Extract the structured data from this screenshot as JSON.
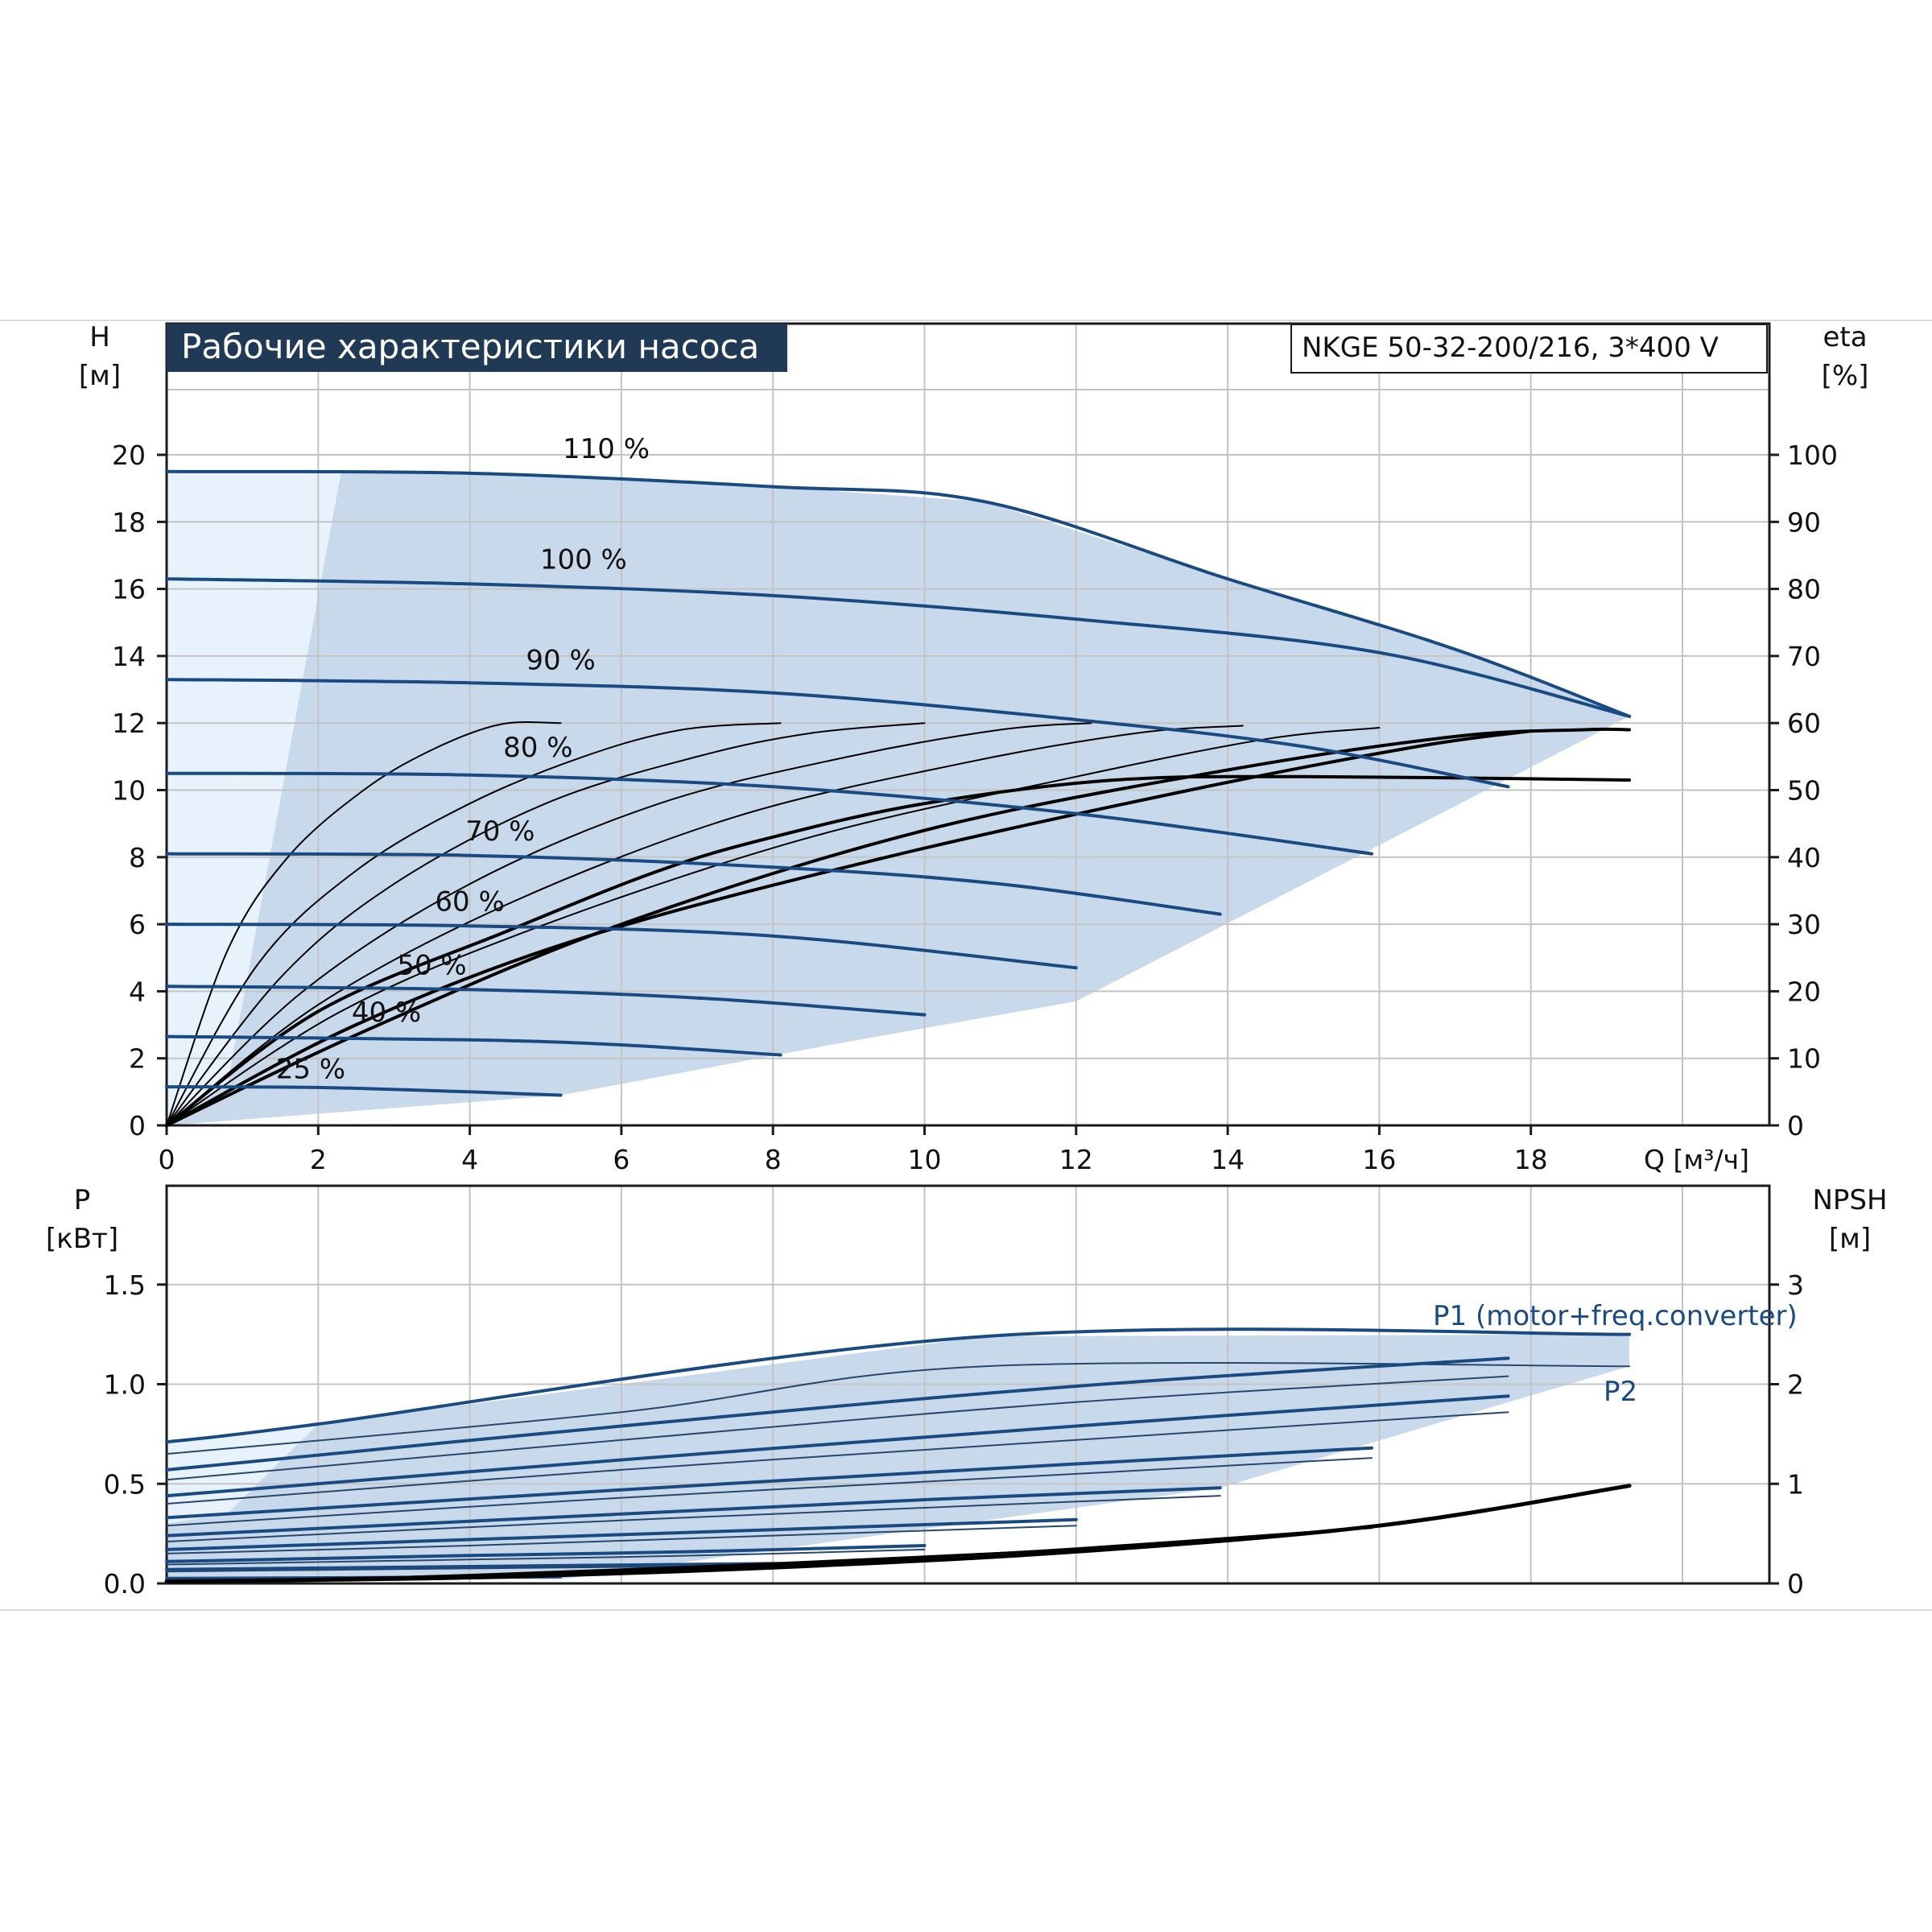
{
  "title": "Рабочие характеристики насоса",
  "model": "NKGE 50-32-200/216, 3*400 V",
  "colors": {
    "title_bg": "#203a56",
    "curve": "#1a4a82",
    "range_fill": "#c9d9ec",
    "range_fill_light": "#e8f2fd",
    "efficiency": "#000000",
    "grid": "#c4c4c4"
  },
  "chart_data": [
    {
      "id": "head",
      "type": "line",
      "title": "Рабочие характеристики насоса",
      "xlabel": "Q [м³/ч]",
      "x_ticks": [
        "0",
        "2",
        "4",
        "6",
        "8",
        "10",
        "12",
        "14",
        "16",
        "18"
      ],
      "xlim": [
        0,
        21.2
      ],
      "y_left_label": [
        "H",
        "[м]"
      ],
      "y_left_ticks": [
        "0",
        "2",
        "4",
        "6",
        "8",
        "10",
        "12",
        "14",
        "16",
        "18",
        "20"
      ],
      "ylim": [
        0,
        24
      ],
      "y_right_label": [
        "eta",
        "[%]"
      ],
      "y_right_ticks": [
        "0",
        "10",
        "20",
        "30",
        "40",
        "50",
        "60",
        "70",
        "80",
        "90",
        "100"
      ],
      "y_right_lim": [
        0,
        120
      ],
      "grid": true,
      "speed_curves": [
        {
          "name": "110 %",
          "points": [
            [
              0,
              19.5
            ],
            [
              4,
              19.45
            ],
            [
              8,
              19.05
            ],
            [
              10.8,
              18.6
            ],
            [
              14,
              16.3
            ],
            [
              17,
              14.2
            ],
            [
              19.3,
              12.2
            ]
          ]
        },
        {
          "name": "100 %",
          "points": [
            [
              0,
              16.3
            ],
            [
              4,
              16.15
            ],
            [
              8,
              15.8
            ],
            [
              12,
              15.1
            ],
            [
              16,
              14.1
            ],
            [
              19.3,
              12.2
            ]
          ]
        },
        {
          "name": "90 %",
          "points": [
            [
              0,
              13.3
            ],
            [
              4,
              13.2
            ],
            [
              8,
              12.9
            ],
            [
              12,
              12.1
            ],
            [
              15,
              11.3
            ],
            [
              17.7,
              10.1
            ]
          ]
        },
        {
          "name": "80 %",
          "points": [
            [
              0,
              10.5
            ],
            [
              4,
              10.45
            ],
            [
              8,
              10.1
            ],
            [
              12,
              9.3
            ],
            [
              15.9,
              8.1
            ]
          ]
        },
        {
          "name": "70 %",
          "points": [
            [
              0,
              8.1
            ],
            [
              4,
              8.05
            ],
            [
              8,
              7.7
            ],
            [
              11,
              7.2
            ],
            [
              13.9,
              6.3
            ]
          ]
        },
        {
          "name": "60 %",
          "points": [
            [
              0,
              6.0
            ],
            [
              4,
              5.95
            ],
            [
              8,
              5.65
            ],
            [
              12,
              4.7
            ]
          ]
        },
        {
          "name": "50 %",
          "points": [
            [
              0,
              4.15
            ],
            [
              4,
              4.05
            ],
            [
              7,
              3.8
            ],
            [
              10,
              3.3
            ]
          ]
        },
        {
          "name": "40 %",
          "points": [
            [
              0,
              2.65
            ],
            [
              4,
              2.55
            ],
            [
              6,
              2.4
            ],
            [
              8.1,
              2.1
            ]
          ]
        },
        {
          "name": "25 %",
          "points": [
            [
              0,
              1.15
            ],
            [
              2,
              1.13
            ],
            [
              4,
              1.0
            ],
            [
              5.2,
              0.9
            ]
          ]
        }
      ],
      "efficiency_curves": [
        {
          "points": [
            [
              0,
              0
            ],
            [
              0.8,
              26
            ],
            [
              1.6,
              40
            ],
            [
              2.6,
              50
            ],
            [
              3.5,
              56
            ],
            [
              4.4,
              59.8
            ],
            [
              5.2,
              60
            ]
          ]
        },
        {
          "points": [
            [
              0,
              0
            ],
            [
              1.2,
              24
            ],
            [
              2.5,
              38
            ],
            [
              4,
              48
            ],
            [
              5.5,
              55
            ],
            [
              6.8,
              59
            ],
            [
              8.1,
              60
            ]
          ]
        },
        {
          "points": [
            [
              0,
              0
            ],
            [
              1.5,
              22
            ],
            [
              3,
              36
            ],
            [
              5,
              48
            ],
            [
              7,
              55
            ],
            [
              8.5,
              58.5
            ],
            [
              10,
              60
            ]
          ]
        },
        {
          "points": [
            [
              0,
              0
            ],
            [
              1.8,
              20
            ],
            [
              4,
              36
            ],
            [
              6.5,
              48
            ],
            [
              9,
              55
            ],
            [
              11,
              59
            ],
            [
              12.2,
              60
            ]
          ]
        },
        {
          "points": [
            [
              0,
              0
            ],
            [
              2,
              18
            ],
            [
              4.5,
              33
            ],
            [
              7.5,
              46
            ],
            [
              10.5,
              54
            ],
            [
              12.8,
              58.5
            ],
            [
              14.2,
              59.6
            ]
          ]
        },
        {
          "points": [
            [
              0,
              0
            ],
            [
              2.3,
              17
            ],
            [
              5,
              30
            ],
            [
              8.5,
              43
            ],
            [
              12,
              52
            ],
            [
              14.5,
              57.6
            ],
            [
              16,
              59.3
            ]
          ]
        },
        {
          "points": [
            [
              0,
              0
            ],
            [
              2.5,
              15
            ],
            [
              5.5,
              28
            ],
            [
              9.5,
              40
            ],
            [
              13.5,
              50
            ],
            [
              16.5,
              56.5
            ],
            [
              18,
              58.8
            ]
          ]
        },
        {
          "points": [
            [
              0,
              0
            ],
            [
              2,
              17
            ],
            [
              4.5,
              29
            ],
            [
              6.5,
              38
            ],
            [
              8,
              43
            ],
            [
              10,
              48
            ],
            [
              12.5,
              51.5
            ],
            [
              15,
              52
            ],
            [
              19.3,
              51.5
            ]
          ]
        },
        {
          "points": [
            [
              0,
              0
            ],
            [
              2.6,
              14
            ],
            [
              6,
              30
            ],
            [
              10,
              44
            ],
            [
              14,
              53
            ],
            [
              17,
              58
            ],
            [
              18.7,
              59
            ],
            [
              19.3,
              59
            ]
          ]
        }
      ],
      "curve_labels": [
        "110 %",
        "100 %",
        "90 %",
        "80 %",
        "70 %",
        "60 %",
        "50 %",
        "40 %",
        "25 %"
      ]
    },
    {
      "id": "power",
      "type": "line",
      "y_left_label": [
        "P",
        "[кВт]"
      ],
      "y_left_ticks": [
        "0.0",
        "0.5",
        "1.0",
        "1.5"
      ],
      "ylim": [
        0,
        2.0
      ],
      "y_right_label": [
        "NPSH",
        "[м]"
      ],
      "y_right_ticks": [
        "0",
        "1",
        "2",
        "3"
      ],
      "y_right_lim": [
        0,
        4
      ],
      "xlim": [
        0,
        21.2
      ],
      "grid": true,
      "series_labels": [
        "P1 (motor+freq.converter)",
        "P2"
      ],
      "p1_curves": [
        {
          "points": [
            [
              0,
              0.71
            ],
            [
              2,
              0.8
            ],
            [
              10.8,
              1.24
            ],
            [
              19.3,
              1.25
            ]
          ]
        },
        {
          "points": [
            [
              0,
              0.57
            ],
            [
              6,
              0.79
            ],
            [
              12,
              0.99
            ],
            [
              17.7,
              1.13
            ]
          ]
        },
        {
          "points": [
            [
              0,
              0.44
            ],
            [
              6,
              0.62
            ],
            [
              12,
              0.79
            ],
            [
              17.7,
              0.94
            ]
          ]
        },
        {
          "points": [
            [
              0,
              0.33
            ],
            [
              6,
              0.47
            ],
            [
              12,
              0.6
            ],
            [
              15.9,
              0.68
            ]
          ]
        },
        {
          "points": [
            [
              0,
              0.24
            ],
            [
              5,
              0.33
            ],
            [
              10,
              0.42
            ],
            [
              13.9,
              0.48
            ]
          ]
        },
        {
          "points": [
            [
              0,
              0.17
            ],
            [
              4,
              0.22
            ],
            [
              8,
              0.27
            ],
            [
              12,
              0.32
            ]
          ]
        },
        {
          "points": [
            [
              0,
              0.11
            ],
            [
              4,
              0.14
            ],
            [
              7,
              0.16
            ],
            [
              10,
              0.19
            ]
          ]
        },
        {
          "points": [
            [
              0,
              0.07
            ],
            [
              4,
              0.085
            ],
            [
              8.1,
              0.1
            ]
          ]
        },
        {
          "points": [
            [
              0,
              0.025
            ],
            [
              3,
              0.03
            ],
            [
              5.2,
              0.035
            ]
          ]
        }
      ],
      "p2_curves": [
        {
          "points": [
            [
              0,
              0.65
            ],
            [
              6,
              0.86
            ],
            [
              10.8,
              1.09
            ],
            [
              19.3,
              1.09
            ]
          ]
        },
        {
          "points": [
            [
              0,
              0.52
            ],
            [
              6,
              0.72
            ],
            [
              12,
              0.91
            ],
            [
              17.7,
              1.04
            ]
          ]
        },
        {
          "points": [
            [
              0,
              0.4
            ],
            [
              6,
              0.57
            ],
            [
              12,
              0.72
            ],
            [
              17.7,
              0.86
            ]
          ]
        },
        {
          "points": [
            [
              0,
              0.29
            ],
            [
              6,
              0.43
            ],
            [
              12,
              0.55
            ],
            [
              15.9,
              0.63
            ]
          ]
        },
        {
          "points": [
            [
              0,
              0.21
            ],
            [
              5,
              0.3
            ],
            [
              10,
              0.38
            ],
            [
              13.9,
              0.44
            ]
          ]
        },
        {
          "points": [
            [
              0,
              0.15
            ],
            [
              4,
              0.19
            ],
            [
              8,
              0.24
            ],
            [
              12,
              0.29
            ]
          ]
        },
        {
          "points": [
            [
              0,
              0.095
            ],
            [
              4,
              0.12
            ],
            [
              7,
              0.14
            ],
            [
              10,
              0.17
            ]
          ]
        },
        {
          "points": [
            [
              0,
              0.06
            ],
            [
              4,
              0.075
            ],
            [
              8.1,
              0.09
            ]
          ]
        },
        {
          "points": [
            [
              0,
              0.02
            ],
            [
              3,
              0.025
            ],
            [
              5.2,
              0.03
            ]
          ]
        }
      ],
      "npsh_curves": [
        {
          "points": [
            [
              0,
              0.02
            ],
            [
              4,
              0.06
            ],
            [
              8,
              0.16
            ],
            [
              12,
              0.32
            ],
            [
              16,
              0.58
            ],
            [
              19.3,
              0.98
            ]
          ]
        },
        {
          "points": [
            [
              0,
              0.02
            ],
            [
              4,
              0.07
            ],
            [
              8,
              0.18
            ],
            [
              12,
              0.35
            ],
            [
              15.9,
              0.56
            ]
          ]
        },
        {
          "points": [
            [
              0,
              0.02
            ],
            [
              4,
              0.08
            ],
            [
              8,
              0.2
            ],
            [
              12,
              0.34
            ]
          ]
        },
        {
          "points": [
            [
              0,
              0.02
            ],
            [
              3,
              0.06
            ],
            [
              6,
              0.14
            ],
            [
              8.1,
              0.2
            ]
          ]
        }
      ]
    }
  ]
}
